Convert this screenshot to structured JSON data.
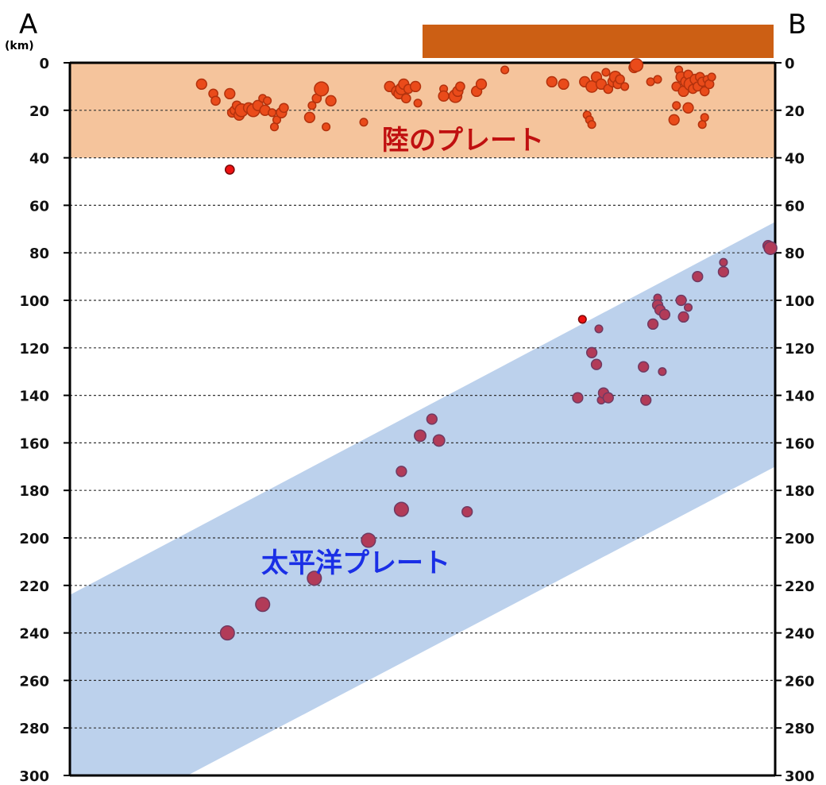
{
  "chart_data": {
    "type": "scatter",
    "title": "",
    "ylabel_unit": "(km)",
    "left_label": "A",
    "right_label": "B",
    "ylim": [
      0,
      300
    ],
    "y_ticks": [
      "0",
      "20",
      "40",
      "60",
      "80",
      "100",
      "120",
      "140",
      "160",
      "180",
      "200",
      "220",
      "240",
      "260",
      "280",
      "300"
    ],
    "grid": "dashed horizontal every 20 km",
    "x_range": [
      0,
      300
    ],
    "colors": {
      "continental_plate_fill": "#f5c49c",
      "pacific_plate_fill": "#bcd1ec",
      "land_bar": "#cc5f14",
      "shallow_quake_fill": "#ea4b1a",
      "shallow_quake_stroke": "#b3320d",
      "deep_quake_fill": "#b23b58",
      "deep_quake_stroke": "#6f3a62",
      "red_dot_fill": "#ee1111",
      "continental_label_color": "#c01010",
      "pacific_label_color": "#1a2fe6"
    },
    "land_bar_x": [
      150,
      300
    ],
    "continental_plate": {
      "label": "陸のプレート",
      "depth_range": [
        0,
        40
      ]
    },
    "pacific_plate": {
      "label": "太平洋プレート",
      "upper_boundary": [
        [
          0,
          224
        ],
        [
          300,
          67
        ]
      ],
      "lower_boundary": [
        [
          50,
          300
        ],
        [
          300,
          170
        ]
      ]
    },
    "series": [
      {
        "kind": "shallow",
        "points": [
          [
            56,
            9,
            4
          ],
          [
            61,
            13,
            3.5
          ],
          [
            62,
            16,
            3.5
          ],
          [
            68,
            13,
            4
          ],
          [
            69,
            21,
            3.5
          ],
          [
            70,
            20,
            3.5
          ],
          [
            72,
            22,
            4
          ],
          [
            71,
            18,
            3.5
          ],
          [
            73,
            20,
            5
          ],
          [
            76,
            19,
            4
          ],
          [
            78,
            20,
            5
          ],
          [
            80,
            18,
            4
          ],
          [
            82,
            15,
            3
          ],
          [
            84,
            16,
            3
          ],
          [
            83,
            20,
            4
          ],
          [
            86,
            21,
            3
          ],
          [
            87,
            27,
            3
          ],
          [
            88,
            24,
            3
          ],
          [
            90,
            21,
            4
          ],
          [
            91,
            19,
            3.5
          ],
          [
            102,
            23,
            4
          ],
          [
            103,
            18,
            3
          ],
          [
            105,
            15,
            3.5
          ],
          [
            107,
            11,
            5.5
          ],
          [
            109,
            27,
            3
          ],
          [
            111,
            16,
            4
          ],
          [
            125,
            25,
            3
          ],
          [
            136,
            10,
            4
          ],
          [
            139,
            12,
            4
          ],
          [
            140,
            13,
            4
          ],
          [
            141,
            11,
            4.5
          ],
          [
            142,
            9,
            4
          ],
          [
            143,
            15,
            3.5
          ],
          [
            144,
            11,
            3.5
          ],
          [
            147,
            10,
            4
          ],
          [
            148,
            17,
            3
          ],
          [
            159,
            11,
            3
          ],
          [
            159,
            14,
            4
          ],
          [
            164,
            14,
            5
          ],
          [
            165,
            12,
            4
          ],
          [
            166,
            10,
            3.5
          ],
          [
            173,
            12,
            4
          ],
          [
            175,
            9,
            4
          ],
          [
            185,
            3,
            3
          ],
          [
            205,
            8,
            4
          ],
          [
            210,
            9,
            4
          ],
          [
            219,
            8,
            4
          ],
          [
            222,
            10,
            4.5
          ],
          [
            224,
            6,
            4
          ],
          [
            226,
            9,
            4
          ],
          [
            228,
            4,
            3
          ],
          [
            229,
            11,
            3.5
          ],
          [
            231,
            8,
            4
          ],
          [
            232,
            6,
            4.5
          ],
          [
            233,
            9,
            3.5
          ],
          [
            234,
            7,
            3.5
          ],
          [
            220,
            22,
            3
          ],
          [
            221,
            24,
            3
          ],
          [
            222,
            26,
            3
          ],
          [
            236,
            10,
            3
          ],
          [
            240,
            2,
            4
          ],
          [
            241,
            1,
            5
          ],
          [
            247,
            8,
            3
          ],
          [
            250,
            7,
            3
          ],
          [
            259,
            3,
            3
          ],
          [
            258,
            10,
            3.5
          ],
          [
            260,
            6,
            4
          ],
          [
            261,
            12,
            4
          ],
          [
            262,
            8,
            4
          ],
          [
            263,
            5,
            3.5
          ],
          [
            264,
            9,
            5
          ],
          [
            265,
            11,
            3.5
          ],
          [
            266,
            7,
            4
          ],
          [
            267,
            10,
            3.5
          ],
          [
            268,
            6,
            3.5
          ],
          [
            269,
            8,
            3.5
          ],
          [
            270,
            12,
            3.5
          ],
          [
            271,
            7,
            3
          ],
          [
            272,
            9,
            3.5
          ],
          [
            273,
            6,
            3
          ],
          [
            258,
            18,
            3
          ],
          [
            263,
            19,
            4
          ],
          [
            257,
            24,
            4
          ],
          [
            270,
            23,
            3
          ],
          [
            269,
            26,
            3
          ]
        ]
      },
      {
        "kind": "isolated",
        "points": [
          [
            68,
            45,
            3.5
          ],
          [
            218,
            108,
            3
          ]
        ]
      },
      {
        "kind": "deep",
        "points": [
          [
            67,
            240,
            5.5
          ],
          [
            82,
            228,
            5.5
          ],
          [
            104,
            217,
            5.5
          ],
          [
            127,
            201,
            5.5
          ],
          [
            141,
            188,
            5.5
          ],
          [
            141,
            172,
            4
          ],
          [
            149,
            157,
            4.5
          ],
          [
            154,
            150,
            4
          ],
          [
            157,
            159,
            4.5
          ],
          [
            169,
            189,
            4
          ],
          [
            216,
            141,
            4
          ],
          [
            225,
            112,
            3
          ],
          [
            226,
            142,
            3
          ],
          [
            227,
            139,
            4
          ],
          [
            229,
            141,
            4
          ],
          [
            222,
            122,
            4
          ],
          [
            224,
            127,
            4
          ],
          [
            244,
            128,
            4
          ],
          [
            245,
            142,
            4
          ],
          [
            248,
            110,
            4
          ],
          [
            250,
            99,
            3
          ],
          [
            250,
            102,
            4
          ],
          [
            251,
            104,
            4
          ],
          [
            253,
            106,
            4
          ],
          [
            252,
            130,
            3
          ],
          [
            260,
            100,
            4
          ],
          [
            261,
            107,
            4
          ],
          [
            263,
            103,
            3
          ],
          [
            267,
            90,
            4
          ],
          [
            278,
            84,
            3
          ],
          [
            278,
            88,
            4
          ],
          [
            297,
            77,
            4
          ],
          [
            298,
            78,
            5
          ]
        ]
      }
    ]
  }
}
